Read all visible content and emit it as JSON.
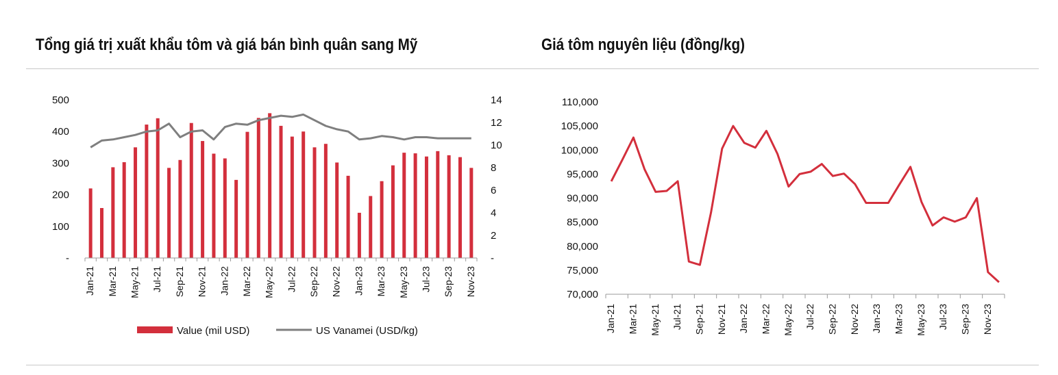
{
  "titles": {
    "left": "Tổng giá trị xuất khẩu tôm và giá bán bình quân sang Mỹ",
    "right": "Giá tôm nguyên liệu (đồng/kg)"
  },
  "colors": {
    "bar": "#d32f3c",
    "line_gray": "#7f7f7f",
    "line_red": "#d32f3c"
  },
  "chart_data": [
    {
      "type": "bar",
      "categories": [
        "Jan-21",
        "Feb-21",
        "Mar-21",
        "Apr-21",
        "May-21",
        "Jun-21",
        "Jul-21",
        "Aug-21",
        "Sep-21",
        "Oct-21",
        "Nov-21",
        "Dec-21",
        "Jan-22",
        "Feb-22",
        "Mar-22",
        "Apr-22",
        "May-22",
        "Jun-22",
        "Jul-22",
        "Aug-22",
        "Sep-22",
        "Oct-22",
        "Nov-22",
        "Dec-22",
        "Jan-23",
        "Feb-23",
        "Mar-23",
        "Apr-23",
        "May-23",
        "Jun-23",
        "Jul-23",
        "Aug-23",
        "Sep-23",
        "Oct-23",
        "Nov-23"
      ],
      "x_tick_labels": [
        "Jan-21",
        "Mar-21",
        "May-21",
        "Jul-21",
        "Sep-21",
        "Nov-21",
        "Jan-22",
        "Mar-22",
        "May-22",
        "Jul-22",
        "Sep-22",
        "Nov-22",
        "Jan-23",
        "Mar-23",
        "May-23",
        "Jul-23",
        "Sep-23",
        "Nov-23"
      ],
      "series": [
        {
          "name": "Value (mil USD)",
          "type": "bar",
          "axis": "left",
          "values": [
            220,
            158,
            287,
            303,
            350,
            422,
            442,
            285,
            310,
            427,
            370,
            330,
            315,
            247,
            399,
            443,
            458,
            418,
            384,
            400,
            350,
            361,
            302,
            260,
            143,
            196,
            243,
            293,
            333,
            331,
            321,
            338,
            325,
            319,
            285
          ]
        },
        {
          "name": "US Vanamei (USD/kg)",
          "type": "line",
          "axis": "right",
          "values": [
            9.8,
            10.4,
            10.5,
            10.7,
            10.9,
            11.2,
            11.3,
            11.9,
            10.7,
            11.2,
            11.3,
            10.5,
            11.6,
            11.9,
            11.8,
            12.2,
            12.4,
            12.6,
            12.5,
            12.7,
            12.2,
            11.7,
            11.4,
            11.2,
            10.5,
            10.6,
            10.8,
            10.7,
            10.5,
            10.7,
            10.7,
            10.6,
            10.6,
            10.6,
            10.6
          ]
        }
      ],
      "y_left": {
        "ticks": [
          "500",
          "400",
          "300",
          "200",
          "100",
          "-"
        ],
        "lim": [
          0,
          500
        ]
      },
      "y_right": {
        "ticks": [
          "14",
          "12",
          "10",
          "8",
          "6",
          "4",
          "2",
          "-"
        ],
        "lim": [
          0,
          14
        ]
      },
      "legend": [
        {
          "label": "Value (mil USD)",
          "kind": "bar"
        },
        {
          "label": "US Vanamei (USD/kg)",
          "kind": "line"
        }
      ],
      "legend_position": "bottom"
    },
    {
      "type": "line",
      "categories": [
        "Jan-21",
        "Feb-21",
        "Mar-21",
        "Apr-21",
        "May-21",
        "Jun-21",
        "Jul-21",
        "Aug-21",
        "Sep-21",
        "Oct-21",
        "Nov-21",
        "Dec-21",
        "Jan-22",
        "Feb-22",
        "Mar-22",
        "Apr-22",
        "May-22",
        "Jun-22",
        "Jul-22",
        "Aug-22",
        "Sep-22",
        "Oct-22",
        "Nov-22",
        "Dec-22",
        "Jan-23",
        "Feb-23",
        "Mar-23",
        "Apr-23",
        "May-23",
        "Jun-23",
        "Jul-23",
        "Aug-23",
        "Sep-23",
        "Oct-23",
        "Nov-23",
        "Dec-23"
      ],
      "x_tick_labels": [
        "Jan-21",
        "Mar-21",
        "May-21",
        "Jul-21",
        "Sep-21",
        "Nov-21",
        "Jan-22",
        "Mar-22",
        "May-22",
        "Jul-22",
        "Sep-22",
        "Nov-22",
        "Jan-23",
        "Mar-23",
        "May-23",
        "Jul-23",
        "Sep-23",
        "Nov-23"
      ],
      "series": [
        {
          "values": [
            93500,
            98000,
            102600,
            96000,
            91300,
            91500,
            93500,
            76800,
            76100,
            87000,
            100300,
            105000,
            101500,
            100500,
            104000,
            99200,
            92400,
            95000,
            95500,
            97100,
            94600,
            95100,
            92900,
            89000,
            89000,
            89000,
            92800,
            96500,
            89200,
            84300,
            86000,
            85100,
            86000,
            90000,
            74600,
            72500
          ]
        }
      ],
      "y": {
        "ticks": [
          "110,000",
          "105,000",
          "100,000",
          "95,000",
          "90,000",
          "85,000",
          "80,000",
          "75,000",
          "70,000"
        ],
        "lim": [
          70000,
          110000
        ]
      }
    }
  ]
}
